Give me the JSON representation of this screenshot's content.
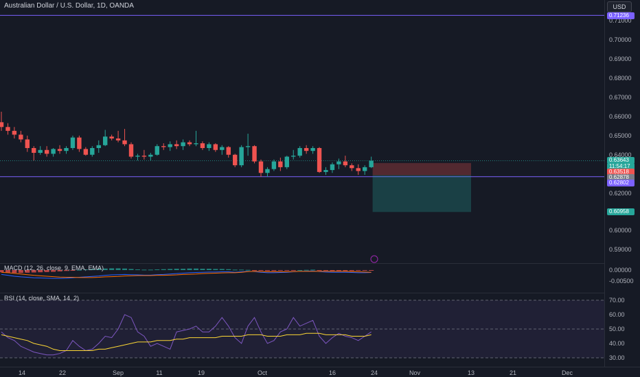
{
  "header": {
    "title": "Australian Dollar / U.S. Dollar, 1D, OANDA",
    "currency_label": "USD"
  },
  "price_axis": {
    "ticks": [
      "0.71000",
      "0.70000",
      "0.69000",
      "0.68000",
      "0.67000",
      "0.66000",
      "0.65000",
      "0.64000",
      "0.62000",
      "0.60000",
      "0.59000"
    ],
    "macd_ticks": [
      "0.00000",
      "-0.00500"
    ],
    "rsi_ticks": [
      "70.00",
      "60.00",
      "50.00",
      "40.00",
      "30.00"
    ]
  },
  "price_badges": {
    "horizontal_line_top": "0.71236",
    "last_price": "0.63643",
    "countdown": "11:54:17",
    "stop_level": "0.63518",
    "entry_level": "0.62878",
    "horizontal_line_bottom": "0.62802",
    "target_level": "0.60958"
  },
  "time_axis": {
    "labels": [
      "14",
      "22",
      "Sep",
      "11",
      "19",
      "Oct",
      "16",
      "24",
      "Nov",
      "13",
      "21",
      "Dec"
    ]
  },
  "indicators": {
    "macd_title": "MACD (12, 26, close, 9, EMA, EMA)",
    "rsi_title": "RSI (14, close, SMA, 14, 2)"
  },
  "colors": {
    "up": "#26a69a",
    "down": "#ef5350",
    "horizontal_line": "#7b61ff",
    "macd_line": "#2962ff",
    "signal_line": "#ff6d00",
    "rsi_line": "#7e57c2",
    "rsi_ma": "#fdd835"
  },
  "chart_data": {
    "type": "candlestick",
    "candles": [
      {
        "o": 0.6565,
        "h": 0.662,
        "l": 0.652,
        "c": 0.654
      },
      {
        "o": 0.654,
        "h": 0.656,
        "l": 0.65,
        "c": 0.652
      },
      {
        "o": 0.652,
        "h": 0.654,
        "l": 0.648,
        "c": 0.65
      },
      {
        "o": 0.65,
        "h": 0.652,
        "l": 0.646,
        "c": 0.6475
      },
      {
        "o": 0.6475,
        "h": 0.6495,
        "l": 0.641,
        "c": 0.643
      },
      {
        "o": 0.643,
        "h": 0.644,
        "l": 0.6365,
        "c": 0.6405
      },
      {
        "o": 0.6405,
        "h": 0.644,
        "l": 0.6395,
        "c": 0.642
      },
      {
        "o": 0.642,
        "h": 0.644,
        "l": 0.6385,
        "c": 0.64
      },
      {
        "o": 0.64,
        "h": 0.643,
        "l": 0.6385,
        "c": 0.6425
      },
      {
        "o": 0.6425,
        "h": 0.6445,
        "l": 0.64,
        "c": 0.6415
      },
      {
        "o": 0.6415,
        "h": 0.644,
        "l": 0.64,
        "c": 0.643
      },
      {
        "o": 0.643,
        "h": 0.6495,
        "l": 0.642,
        "c": 0.6485
      },
      {
        "o": 0.6485,
        "h": 0.6495,
        "l": 0.641,
        "c": 0.6425
      },
      {
        "o": 0.6425,
        "h": 0.6435,
        "l": 0.639,
        "c": 0.6395
      },
      {
        "o": 0.6395,
        "h": 0.644,
        "l": 0.6385,
        "c": 0.643
      },
      {
        "o": 0.643,
        "h": 0.647,
        "l": 0.6405,
        "c": 0.6445
      },
      {
        "o": 0.6445,
        "h": 0.6525,
        "l": 0.644,
        "c": 0.649
      },
      {
        "o": 0.649,
        "h": 0.65,
        "l": 0.647,
        "c": 0.648
      },
      {
        "o": 0.648,
        "h": 0.652,
        "l": 0.646,
        "c": 0.647
      },
      {
        "o": 0.647,
        "h": 0.653,
        "l": 0.644,
        "c": 0.645
      },
      {
        "o": 0.645,
        "h": 0.646,
        "l": 0.6375,
        "c": 0.6385
      },
      {
        "o": 0.6385,
        "h": 0.64,
        "l": 0.6365,
        "c": 0.639
      },
      {
        "o": 0.639,
        "h": 0.642,
        "l": 0.637,
        "c": 0.6385
      },
      {
        "o": 0.6385,
        "h": 0.6405,
        "l": 0.6365,
        "c": 0.6395
      },
      {
        "o": 0.6395,
        "h": 0.645,
        "l": 0.639,
        "c": 0.644
      },
      {
        "o": 0.644,
        "h": 0.6455,
        "l": 0.642,
        "c": 0.6435
      },
      {
        "o": 0.6435,
        "h": 0.6465,
        "l": 0.6415,
        "c": 0.645
      },
      {
        "o": 0.645,
        "h": 0.647,
        "l": 0.6425,
        "c": 0.644
      },
      {
        "o": 0.644,
        "h": 0.6475,
        "l": 0.642,
        "c": 0.646
      },
      {
        "o": 0.646,
        "h": 0.647,
        "l": 0.644,
        "c": 0.645
      },
      {
        "o": 0.645,
        "h": 0.652,
        "l": 0.644,
        "c": 0.6455
      },
      {
        "o": 0.6455,
        "h": 0.6465,
        "l": 0.642,
        "c": 0.643
      },
      {
        "o": 0.643,
        "h": 0.646,
        "l": 0.6415,
        "c": 0.645
      },
      {
        "o": 0.645,
        "h": 0.6455,
        "l": 0.641,
        "c": 0.642
      },
      {
        "o": 0.642,
        "h": 0.6445,
        "l": 0.6395,
        "c": 0.6435
      },
      {
        "o": 0.6435,
        "h": 0.644,
        "l": 0.638,
        "c": 0.6395
      },
      {
        "o": 0.6395,
        "h": 0.64,
        "l": 0.633,
        "c": 0.634
      },
      {
        "o": 0.634,
        "h": 0.6445,
        "l": 0.633,
        "c": 0.6435
      },
      {
        "o": 0.6435,
        "h": 0.6505,
        "l": 0.639,
        "c": 0.644
      },
      {
        "o": 0.644,
        "h": 0.6445,
        "l": 0.635,
        "c": 0.636
      },
      {
        "o": 0.636,
        "h": 0.637,
        "l": 0.628,
        "c": 0.63
      },
      {
        "o": 0.63,
        "h": 0.633,
        "l": 0.628,
        "c": 0.632
      },
      {
        "o": 0.632,
        "h": 0.637,
        "l": 0.631,
        "c": 0.636
      },
      {
        "o": 0.636,
        "h": 0.638,
        "l": 0.631,
        "c": 0.633
      },
      {
        "o": 0.633,
        "h": 0.639,
        "l": 0.632,
        "c": 0.6385
      },
      {
        "o": 0.6385,
        "h": 0.642,
        "l": 0.637,
        "c": 0.639
      },
      {
        "o": 0.639,
        "h": 0.644,
        "l": 0.638,
        "c": 0.643
      },
      {
        "o": 0.643,
        "h": 0.6445,
        "l": 0.64,
        "c": 0.6415
      },
      {
        "o": 0.6415,
        "h": 0.644,
        "l": 0.64,
        "c": 0.643
      },
      {
        "o": 0.643,
        "h": 0.6435,
        "l": 0.63,
        "c": 0.6305
      },
      {
        "o": 0.6305,
        "h": 0.633,
        "l": 0.629,
        "c": 0.6315
      },
      {
        "o": 0.6315,
        "h": 0.6355,
        "l": 0.63,
        "c": 0.6345
      },
      {
        "o": 0.6345,
        "h": 0.6375,
        "l": 0.632,
        "c": 0.636
      },
      {
        "o": 0.636,
        "h": 0.639,
        "l": 0.633,
        "c": 0.634
      },
      {
        "o": 0.634,
        "h": 0.635,
        "l": 0.631,
        "c": 0.6325
      },
      {
        "o": 0.6325,
        "h": 0.6345,
        "l": 0.629,
        "c": 0.631
      },
      {
        "o": 0.631,
        "h": 0.634,
        "l": 0.629,
        "c": 0.633
      },
      {
        "o": 0.633,
        "h": 0.6385,
        "l": 0.6325,
        "c": 0.6364
      }
    ],
    "horizontal_lines": [
      0.71236,
      0.62802
    ],
    "position": {
      "entry": 0.62878,
      "stop": 0.63518,
      "target": 0.60958
    },
    "macd": {
      "histogram": [
        -0.001,
        -0.0012,
        -0.0013,
        -0.0013,
        -0.0012,
        -0.0011,
        -0.001,
        -0.0009,
        -0.0008,
        -0.0006,
        -0.0004,
        -0.0002,
        0.0001,
        0.0003,
        0.0005,
        0.0006,
        0.0007,
        0.0008,
        0.0008,
        0.0007,
        0.0005,
        0.0003,
        0.0002,
        0.0002,
        0.0003,
        0.0004,
        0.0005,
        0.0006,
        0.0006,
        0.0007,
        0.0007,
        0.0006,
        0.0006,
        0.0005,
        0.0005,
        0.0004,
        0.0002,
        0.0002,
        0.0001,
        -0.0001,
        -0.0003,
        -0.0004,
        -0.0004,
        -0.0003,
        -0.0002,
        -0.0001,
        0.0,
        0.0001,
        0.0002,
        -0.0001,
        -0.0003,
        -0.0004,
        -0.0004,
        -0.0004,
        -0.0004,
        -0.0003,
        -0.0002,
        -0.0001
      ],
      "macd_line": [
        -0.002,
        -0.0024,
        -0.0028,
        -0.0031,
        -0.0033,
        -0.0035,
        -0.0036,
        -0.0037,
        -0.0038,
        -0.0038,
        -0.0037,
        -0.0035,
        -0.0033,
        -0.0031,
        -0.0029,
        -0.0027,
        -0.0024,
        -0.0022,
        -0.0021,
        -0.002,
        -0.0021,
        -0.0022,
        -0.0023,
        -0.0023,
        -0.0021,
        -0.002,
        -0.0018,
        -0.0016,
        -0.0014,
        -0.0012,
        -0.0011,
        -0.001,
        -0.0009,
        -0.0009,
        -0.0008,
        -0.0008,
        -0.001,
        -0.0008,
        -0.0006,
        -0.0007,
        -0.001,
        -0.0012,
        -0.0012,
        -0.0011,
        -0.001,
        -0.0008,
        -0.0006,
        -0.0005,
        -0.0004,
        -0.0007,
        -0.0009,
        -0.001,
        -0.001,
        -0.001,
        -0.0011,
        -0.0012,
        -0.0012,
        -0.0011
      ],
      "signal_line": [
        -0.001,
        -0.0012,
        -0.0015,
        -0.0018,
        -0.0021,
        -0.0024,
        -0.0026,
        -0.0028,
        -0.003,
        -0.0032,
        -0.0033,
        -0.0033,
        -0.0034,
        -0.0034,
        -0.0034,
        -0.0033,
        -0.0031,
        -0.003,
        -0.0029,
        -0.0027,
        -0.0026,
        -0.0025,
        -0.0025,
        -0.0025,
        -0.0024,
        -0.0024,
        -0.0023,
        -0.0022,
        -0.002,
        -0.0019,
        -0.0018,
        -0.0016,
        -0.0015,
        -0.0014,
        -0.0013,
        -0.0012,
        -0.0012,
        -0.001,
        -0.0007,
        -0.0006,
        -0.0007,
        -0.0008,
        -0.0008,
        -0.0008,
        -0.0008,
        -0.0007,
        -0.0006,
        -0.0006,
        -0.0006,
        -0.0006,
        -0.0006,
        -0.0006,
        -0.0006,
        -0.0006,
        -0.0007,
        -0.0008,
        -0.0009,
        -0.001
      ]
    },
    "rsi": {
      "rsi": [
        48,
        44,
        42,
        38,
        36,
        34,
        33,
        32,
        32,
        33,
        35,
        42,
        38,
        35,
        36,
        40,
        45,
        44,
        50,
        60,
        58,
        48,
        45,
        38,
        40,
        38,
        36,
        48,
        49,
        50,
        52,
        48,
        48,
        52,
        58,
        52,
        44,
        40,
        52,
        58,
        48,
        40,
        42,
        48,
        50,
        58,
        52,
        54,
        56,
        45,
        40,
        44,
        47,
        45,
        44,
        42,
        45,
        48
      ],
      "rsi_ma": [
        46,
        45,
        44,
        43,
        42,
        40,
        39,
        38,
        36,
        35,
        35,
        35,
        35,
        35,
        35,
        36,
        36,
        37,
        38,
        39,
        40,
        41,
        41,
        41,
        42,
        42,
        42,
        43,
        43,
        44,
        44,
        44,
        44,
        44,
        45,
        45,
        45,
        45,
        46,
        46,
        46,
        45,
        45,
        45,
        46,
        46,
        46,
        47,
        47,
        47,
        46,
        46,
        46,
        46,
        45,
        45,
        45,
        46
      ],
      "levels": [
        70,
        50,
        30
      ]
    }
  }
}
